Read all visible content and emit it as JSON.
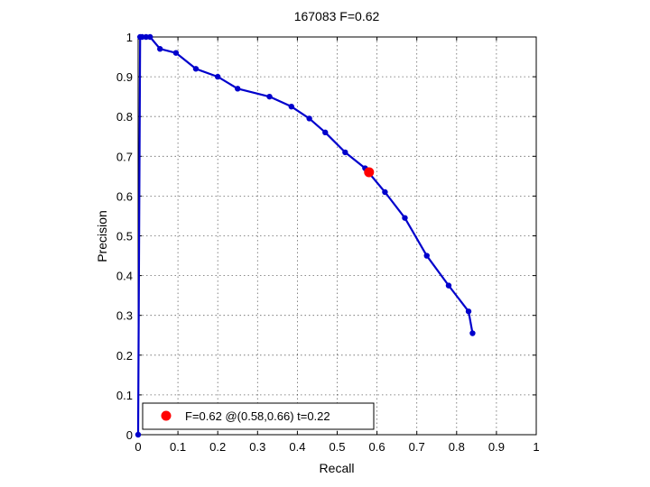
{
  "chart_data": {
    "type": "line",
    "title": "167083 F=0.62",
    "xlabel": "Recall",
    "ylabel": "Precision",
    "xlim": [
      0,
      1
    ],
    "ylim": [
      0,
      1
    ],
    "grid": true,
    "legend_placement": "bottom-left",
    "x_ticks": [
      "0",
      "0.1",
      "0.2",
      "0.3",
      "0.4",
      "0.5",
      "0.6",
      "0.7",
      "0.8",
      "0.9",
      "1"
    ],
    "y_ticks": [
      "0",
      "0.1",
      "0.2",
      "0.3",
      "0.4",
      "0.5",
      "0.6",
      "0.7",
      "0.8",
      "0.9",
      "1"
    ],
    "series": [
      {
        "color": "#0000cc",
        "x": [
          0.0,
          0.005,
          0.01,
          0.02,
          0.03,
          0.055,
          0.095,
          0.145,
          0.2,
          0.25,
          0.33,
          0.385,
          0.43,
          0.47,
          0.52,
          0.57,
          0.62,
          0.67,
          0.725,
          0.78,
          0.83,
          0.84
        ],
        "y": [
          0.0,
          1.0,
          1.0,
          1.0,
          1.0,
          0.97,
          0.96,
          0.92,
          0.9,
          0.87,
          0.85,
          0.825,
          0.795,
          0.76,
          0.71,
          0.67,
          0.61,
          0.545,
          0.45,
          0.375,
          0.31,
          0.255
        ]
      }
    ],
    "highlight_point": {
      "x": 0.58,
      "y": 0.66,
      "color": "#ff0000",
      "legend_label": "F=0.62 @(0.58,0.66) t=0.22"
    }
  }
}
